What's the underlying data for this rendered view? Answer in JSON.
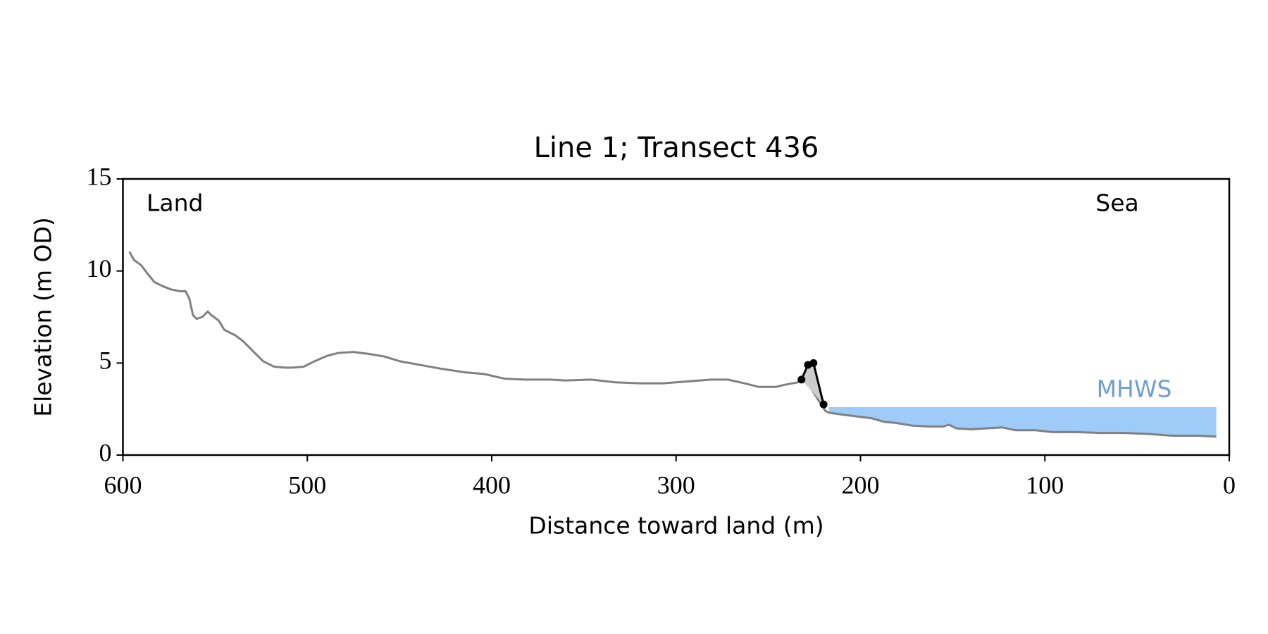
{
  "chart_data": {
    "type": "line",
    "title": "Line 1; Transect 436",
    "x_label": "Distance toward land (m)",
    "y_label": "Elevation (m OD)",
    "annotations": [
      "Land",
      "Sea"
    ],
    "xlim": [
      600,
      0
    ],
    "xticks": [
      600,
      500,
      400,
      300,
      200,
      100,
      0
    ],
    "ylim": [
      0,
      15
    ],
    "yticks": [
      0,
      5,
      10,
      15
    ],
    "series": [
      {
        "color": "#808080",
        "x": [
          596.5,
          594,
          590,
          587,
          583,
          579,
          574,
          569,
          566,
          564,
          562,
          560,
          557,
          554,
          552,
          548,
          545,
          539,
          535,
          530,
          524,
          518,
          512,
          508,
          502,
          496,
          489,
          483,
          475,
          467,
          458,
          450,
          439,
          428,
          415,
          404,
          393,
          382,
          368,
          360,
          346,
          333,
          320,
          307,
          294,
          281,
          272,
          263,
          255,
          246,
          242,
          234,
          230,
          219,
          217,
          210,
          202,
          194,
          187,
          181,
          172,
          163,
          155,
          152,
          148,
          140,
          132,
          123,
          116,
          105,
          96,
          83,
          70,
          57,
          44,
          31,
          17,
          7
        ],
        "values": [
          11.05,
          10.6,
          10.3,
          9.9,
          9.4,
          9.2,
          9.0,
          8.9,
          8.9,
          8.5,
          7.6,
          7.4,
          7.5,
          7.8,
          7.6,
          7.3,
          6.8,
          6.5,
          6.2,
          5.7,
          5.1,
          4.8,
          4.75,
          4.75,
          4.8,
          5.1,
          5.4,
          5.55,
          5.6,
          5.5,
          5.35,
          5.1,
          4.9,
          4.7,
          4.5,
          4.4,
          4.15,
          4.1,
          4.1,
          4.05,
          4.1,
          3.95,
          3.9,
          3.9,
          4.0,
          4.1,
          4.1,
          3.9,
          3.7,
          3.7,
          3.8,
          3.95,
          4.1,
          2.4,
          2.3,
          2.2,
          2.1,
          2.0,
          1.8,
          1.75,
          1.6,
          1.55,
          1.55,
          1.65,
          1.45,
          1.4,
          1.45,
          1.5,
          1.35,
          1.35,
          1.25,
          1.25,
          1.2,
          1.2,
          1.15,
          1.05,
          1.05,
          1.0
        ]
      },
      {
        "color": "#000000",
        "markers": true,
        "shade": "#cccccc",
        "x": [
          232,
          228.5,
          225.5,
          220
        ],
        "values": [
          4.1,
          4.9,
          5.0,
          2.75
        ]
      }
    ],
    "mhws": {
      "label": "MHWS",
      "value": 2.6,
      "x": [
        217,
        7
      ],
      "color": "#9ecbf7",
      "label_color": "#6f9ecf"
    }
  }
}
